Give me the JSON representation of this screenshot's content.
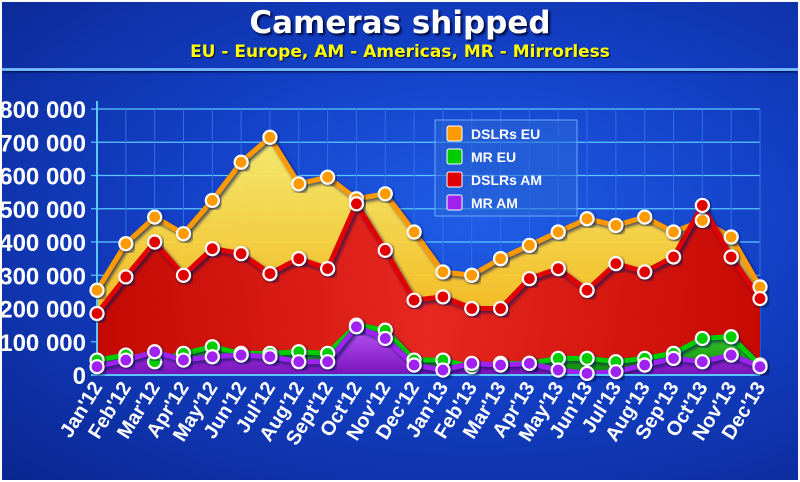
{
  "title": "Cameras shipped",
  "subtitle": "EU - Europe, AM - Americas, MR - Mirrorless",
  "chart_data": {
    "type": "area",
    "title": "Cameras shipped",
    "subtitle": "EU - Europe, AM - Americas, MR - Mirrorless",
    "categories": [
      "Jan'12",
      "Feb'12",
      "Mar'12",
      "Apr'12",
      "May'12",
      "Jun'12",
      "Jul'12",
      "Aug'12",
      "Sept'12",
      "Oct'12",
      "Nov'12",
      "Dec'12",
      "Jan'13",
      "Feb'13",
      "Mar'13",
      "Apr'13",
      "May'13",
      "Jun'13",
      "Jul'13",
      "Aug'13",
      "Sep'13",
      "Oct'13",
      "Nov'13",
      "Dec'13"
    ],
    "ylim": [
      0,
      800000
    ],
    "yticks": [
      0,
      100000,
      200000,
      300000,
      400000,
      500000,
      600000,
      700000,
      800000
    ],
    "ytick_labels": [
      "0",
      "100 000",
      "200 000",
      "300 000",
      "400 000",
      "500 000",
      "600 000",
      "700 000",
      "800 000"
    ],
    "grid": true,
    "legend_position": "top-center",
    "series": [
      {
        "name": "DSLRs EU",
        "color": "#ff9a00",
        "fill": "#ffd21e",
        "values": [
          255000,
          395000,
          475000,
          425000,
          525000,
          640000,
          715000,
          575000,
          595000,
          530000,
          545000,
          430000,
          310000,
          300000,
          350000,
          390000,
          430000,
          470000,
          450000,
          475000,
          430000,
          465000,
          415000,
          265000
        ]
      },
      {
        "name": "MR EU",
        "color": "#00cc00",
        "fill": "#00b000",
        "values": [
          45000,
          60000,
          40000,
          65000,
          85000,
          65000,
          65000,
          70000,
          65000,
          150000,
          135000,
          45000,
          45000,
          25000,
          35000,
          35000,
          50000,
          50000,
          40000,
          50000,
          65000,
          110000,
          115000,
          30000
        ]
      },
      {
        "name": "DSLRs AM",
        "color": "#e00000",
        "fill": "#d40000",
        "values": [
          185000,
          295000,
          400000,
          300000,
          380000,
          365000,
          305000,
          350000,
          320000,
          515000,
          375000,
          225000,
          235000,
          200000,
          200000,
          290000,
          320000,
          255000,
          335000,
          310000,
          355000,
          510000,
          355000,
          230000
        ]
      },
      {
        "name": "MR AM",
        "color": "#a020f0",
        "fill": "#9c14e4",
        "values": [
          25000,
          45000,
          70000,
          45000,
          55000,
          60000,
          55000,
          40000,
          40000,
          145000,
          110000,
          30000,
          15000,
          35000,
          30000,
          35000,
          15000,
          5000,
          10000,
          30000,
          50000,
          40000,
          60000,
          25000
        ]
      }
    ]
  }
}
